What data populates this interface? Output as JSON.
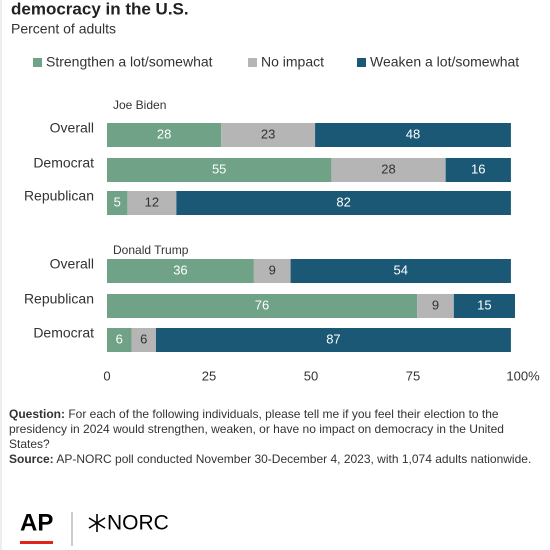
{
  "chart_data": {
    "type": "bar",
    "orientation": "horizontal",
    "stacked": true,
    "title": "democracy in the U.S.",
    "subtitle": "Percent of adults",
    "groups": [
      {
        "label": "Joe Biden",
        "categories": [
          "Overall",
          "Democrat",
          "Republican"
        ]
      },
      {
        "label": "Donald Trump",
        "categories": [
          "Overall",
          "Republican",
          "Democrat"
        ]
      }
    ],
    "series": [
      {
        "name": "Strengthen a lot/somewhat",
        "color": "#6fa287",
        "label_color": "#ffffff",
        "values": [
          28,
          55,
          5,
          36,
          76,
          6
        ]
      },
      {
        "name": "No impact",
        "color": "#b5b5b5",
        "label_color": "#333333",
        "values": [
          23,
          28,
          12,
          9,
          9,
          6
        ]
      },
      {
        "name": "Weaken a lot/somewhat",
        "color": "#1b5876",
        "label_color": "#ffffff",
        "values": [
          48,
          16,
          82,
          54,
          15,
          87
        ]
      }
    ],
    "xlim": [
      0,
      100
    ],
    "xticks": [
      0,
      25,
      50,
      75,
      {
        "value": 100,
        "label": "100%"
      }
    ],
    "grid": false
  },
  "notes": {
    "question_label": "Question:",
    "question": "For each of the following individuals, please tell me if you feel their election to the presidency in 2024 would strengthen, weaken, or have no impact on democracy in the United States?",
    "source_label": "Source:",
    "source": "AP-NORC poll conducted November 30-December 4, 2023, with 1,074 adults nationwide."
  },
  "logos": [
    "AP",
    "NORC"
  ]
}
